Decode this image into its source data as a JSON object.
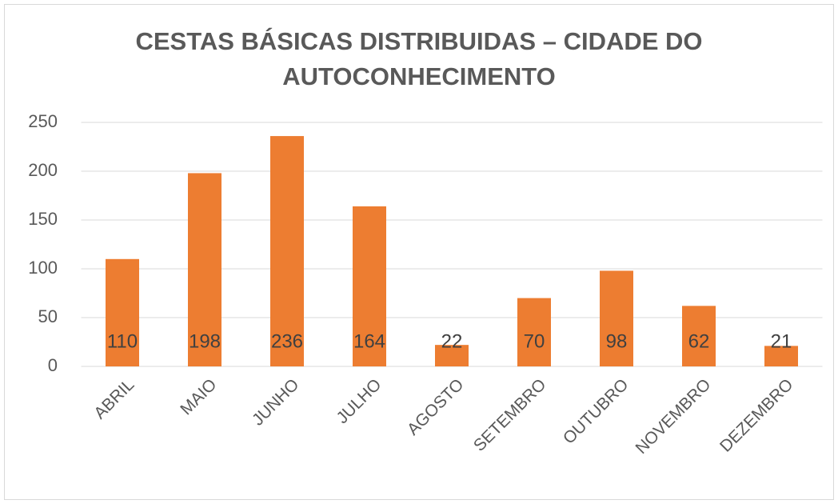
{
  "chart_data": {
    "type": "bar",
    "title": "CESTAS BÁSICAS DISTRIBUIDAS – CIDADE DO AUTOCONHECIMENTO",
    "categories": [
      "ABRIL",
      "MAIO",
      "JUNHO",
      "JULHO",
      "AGOSTO",
      "SETEMBRO",
      "OUTUBRO",
      "NOVEMBRO",
      "DEZEMBRO"
    ],
    "values": [
      110,
      198,
      236,
      164,
      22,
      70,
      98,
      62,
      21
    ],
    "color": "#ed7d31",
    "ylim": [
      0,
      250
    ],
    "yticks": [
      0,
      50,
      100,
      150,
      200,
      250
    ],
    "grid": true
  }
}
